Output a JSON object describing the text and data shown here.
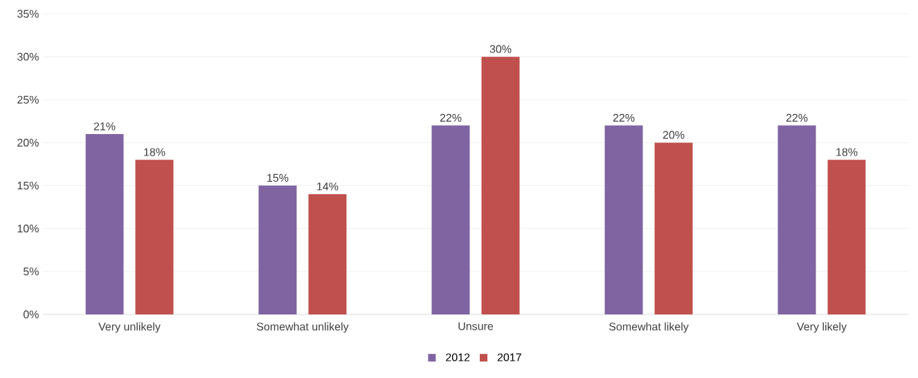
{
  "chart_data": {
    "type": "bar",
    "categories": [
      "Very unlikely",
      "Somewhat unlikely",
      "Unsure",
      "Somewhat likely",
      "Very likely"
    ],
    "series": [
      {
        "name": "2012",
        "color": "#8064a2",
        "values": [
          21,
          15,
          22,
          22,
          22
        ],
        "value_labels": [
          "21%",
          "15%",
          "22%",
          "22%",
          "22%"
        ]
      },
      {
        "name": "2017",
        "color": "#c0504d",
        "values": [
          18,
          14,
          30,
          20,
          18
        ],
        "value_labels": [
          "18%",
          "14%",
          "30%",
          "20%",
          "18%"
        ]
      }
    ],
    "ylim": [
      0,
      35
    ],
    "yticks": [
      {
        "value": 0,
        "label": "0%"
      },
      {
        "value": 5,
        "label": "5%"
      },
      {
        "value": 10,
        "label": "10%"
      },
      {
        "value": 15,
        "label": "15%"
      },
      {
        "value": 20,
        "label": "20%"
      },
      {
        "value": 25,
        "label": "25%"
      },
      {
        "value": 30,
        "label": "30%"
      },
      {
        "value": 35,
        "label": "35%"
      }
    ],
    "grid": "y",
    "legend": "bottom"
  }
}
